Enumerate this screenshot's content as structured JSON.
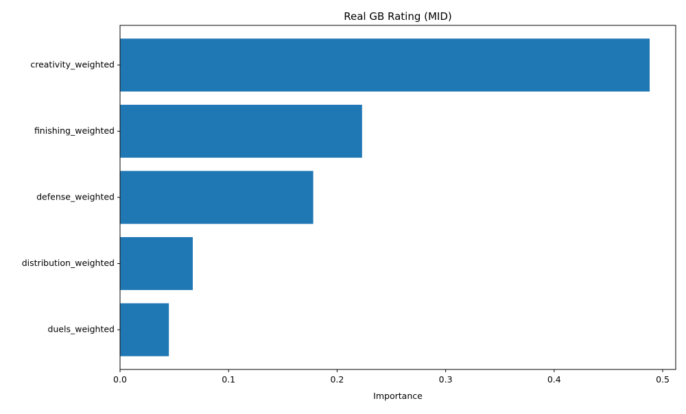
{
  "chart_data": {
    "type": "bar",
    "orientation": "horizontal",
    "title": "Real GB Rating (MID)",
    "xlabel": "Importance",
    "ylabel": "",
    "categories": [
      "creativity_weighted",
      "finishing_weighted",
      "defense_weighted",
      "distribution_weighted",
      "duels_weighted"
    ],
    "values": [
      0.488,
      0.223,
      0.178,
      0.067,
      0.045
    ],
    "xlim": [
      0,
      0.512
    ],
    "xticks": [
      0.0,
      0.1,
      0.2,
      0.3,
      0.4,
      0.5
    ],
    "xtick_labels": [
      "0.0",
      "0.1",
      "0.2",
      "0.3",
      "0.4",
      "0.5"
    ],
    "grid": false,
    "legend": "none",
    "colors": {
      "bar": "#1f77b4",
      "axes": "#000000",
      "background": "#ffffff"
    }
  }
}
